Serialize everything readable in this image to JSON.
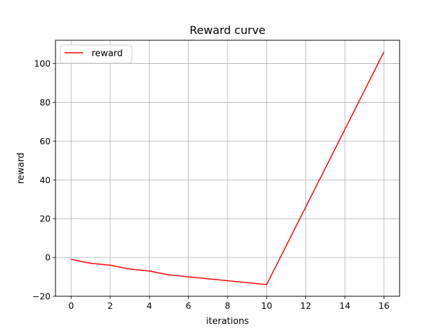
{
  "chart_data": {
    "type": "line",
    "title": "Reward curve",
    "xlabel": "iterations",
    "ylabel": "reward",
    "xlim": [
      -0.8,
      16.8
    ],
    "ylim": [
      -20,
      112
    ],
    "xticks": [
      0,
      2,
      4,
      6,
      8,
      10,
      12,
      14,
      16
    ],
    "yticks": [
      -20,
      0,
      20,
      40,
      60,
      80,
      100
    ],
    "grid": true,
    "legend_position": "top-left",
    "series": [
      {
        "name": "reward",
        "color": "#ff0000",
        "x": [
          0,
          1,
          2,
          3,
          4,
          5,
          6,
          7,
          8,
          9,
          10,
          16
        ],
        "y": [
          -1,
          -3,
          -4,
          -6,
          -7,
          -9,
          -10,
          -11,
          -12,
          -13,
          -14,
          106
        ]
      }
    ]
  }
}
